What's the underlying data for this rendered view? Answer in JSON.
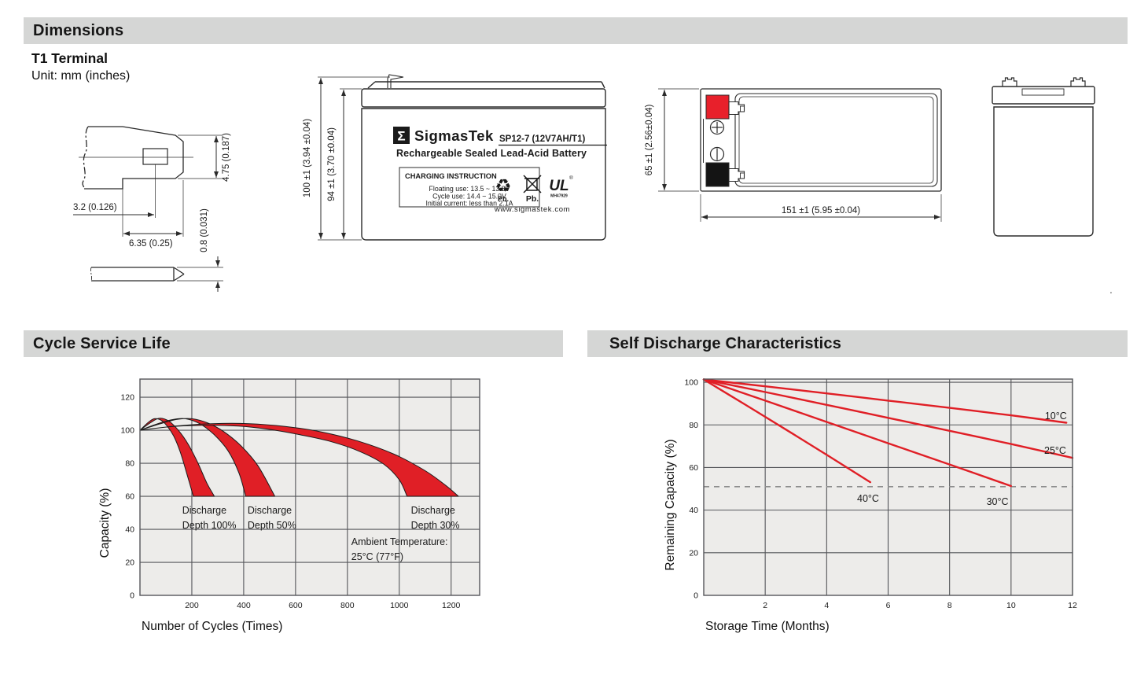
{
  "header": {
    "dimensions_title": "Dimensions"
  },
  "terminal_drawing": {
    "title": "T1 Terminal",
    "unit": "Unit: mm (inches)",
    "dim_blade_width": "4.75 (0.187)",
    "dim_offset": "3.2 (0.126)",
    "dim_blade_length": "6.35 (0.25)",
    "dim_thickness": "0.8 (0.031)"
  },
  "front_view": {
    "dim_total_height": "100 ±1 (3.94 ±0.04)",
    "dim_case_height": "94 ±1 (3.70 ±0.04)",
    "sigma_glyph": "Σ",
    "brand": "SigmasTek",
    "model": "SP12-7 (12V7AH/T1)",
    "subtitle": "Rechargeable Sealed Lead-Acid Battery",
    "charging_title": "CHARGING INSTRUCTION",
    "charging_line1": "Floating use: 13.5 ~ 13.8V",
    "charging_line2": "Cycle use: 14.4 ~ 15.0V",
    "charging_line3": "Initial current: less than 2.1A",
    "recycle_glyph": "♻",
    "pb_recycle": "Pb.",
    "pb_bin": "Pb.",
    "ul_text": "UL",
    "ul_reg": "®",
    "ul_code": "MH47929",
    "website": "www.sigmastek.com"
  },
  "top_view": {
    "dim_height_65": "65 ±1 (2.56±0.04)",
    "dim_length_151": "151 ±1 (5.95 ±0.04)"
  },
  "section_titles": {
    "cycle": "Cycle Service Life",
    "self_discharge": "Self Discharge Characteristics"
  },
  "stray_mark": ".",
  "colors": {
    "accent_red": "#e01f26",
    "terminal_red": "#e8202b",
    "plot_bg": "#edecea",
    "grid": "#55565a",
    "header_bg": "#d5d6d5",
    "dashed": "#8d8d8d"
  },
  "chart_data": [
    {
      "type": "area",
      "title": "Cycle Service Life",
      "xlabel": "Number of Cycles (Times)",
      "ylabel": "Capacity (%)",
      "xlim": [
        0,
        1310
      ],
      "ylim": [
        0,
        131
      ],
      "xticks": [
        200,
        400,
        600,
        800,
        1000,
        1200
      ],
      "yticks": [
        0,
        20,
        40,
        60,
        80,
        100,
        120
      ],
      "grid": true,
      "legend_position": "none",
      "bands": [
        {
          "name": "Discharge Depth 100%",
          "edge_left": [
            [
              0,
              100
            ],
            [
              30,
              104.5
            ],
            [
              55,
              107
            ],
            [
              80,
              106.2
            ],
            [
              105,
              102.5
            ],
            [
              130,
              96.5
            ],
            [
              155,
              87
            ],
            [
              180,
              74
            ],
            [
              206,
              60
            ]
          ],
          "edge_right": [
            [
              0,
              100
            ],
            [
              40,
              104.5
            ],
            [
              75,
              107.3
            ],
            [
              112,
              105.5
            ],
            [
              148,
              100
            ],
            [
              186,
              91.5
            ],
            [
              224,
              80
            ],
            [
              258,
              68
            ],
            [
              287,
              60
            ]
          ]
        },
        {
          "name": "Discharge Depth 50%",
          "edge_left": [
            [
              0,
              100
            ],
            [
              60,
              103.5
            ],
            [
              120,
              106.3
            ],
            [
              175,
              107
            ],
            [
              230,
              104
            ],
            [
              285,
              97.5
            ],
            [
              340,
              87.5
            ],
            [
              382,
              74
            ],
            [
              408,
              60
            ]
          ],
          "edge_right": [
            [
              0,
              100
            ],
            [
              70,
              103.5
            ],
            [
              140,
              106.5
            ],
            [
              200,
              107
            ],
            [
              260,
              104.5
            ],
            [
              320,
              99.5
            ],
            [
              390,
              90.5
            ],
            [
              455,
              78.5
            ],
            [
              520,
              60
            ]
          ]
        },
        {
          "name": "Discharge Depth 30%",
          "edge_left": [
            [
              0,
              100
            ],
            [
              120,
              102.2
            ],
            [
              250,
              103
            ],
            [
              380,
              102.5
            ],
            [
              500,
              100.5
            ],
            [
              620,
              97.2
            ],
            [
              740,
              93
            ],
            [
              850,
              87
            ],
            [
              940,
              79.5
            ],
            [
              1000,
              70
            ],
            [
              1030,
              60
            ]
          ],
          "edge_right": [
            [
              0,
              100
            ],
            [
              140,
              102.6
            ],
            [
              280,
              104
            ],
            [
              420,
              104
            ],
            [
              560,
              102.3
            ],
            [
              700,
              99
            ],
            [
              840,
              93.5
            ],
            [
              980,
              85.5
            ],
            [
              1100,
              75.5
            ],
            [
              1180,
              66.5
            ],
            [
              1228,
              60
            ]
          ]
        }
      ],
      "annotations": [
        {
          "lines": [
            "Discharge",
            "Depth 100%"
          ],
          "x": 163,
          "y": 49.5
        },
        {
          "lines": [
            "Discharge",
            "Depth 50%"
          ],
          "x": 415,
          "y": 49.5
        },
        {
          "lines": [
            "Discharge",
            "Depth 30%"
          ],
          "x": 1045,
          "y": 49.5
        },
        {
          "lines": [
            "Ambient Temperature:",
            "25°C (77°F)"
          ],
          "x": 815,
          "y": 30.5
        }
      ]
    },
    {
      "type": "line",
      "title": "Self Discharge Characteristics",
      "xlabel": "Storage Time (Months)",
      "ylabel": "Remaining Capacity (%)",
      "xlim": [
        0,
        12
      ],
      "ylim": [
        0,
        101.5
      ],
      "xticks": [
        2,
        4,
        6,
        8,
        10,
        12
      ],
      "yticks": [
        0,
        20,
        40,
        60,
        80,
        100
      ],
      "grid": true,
      "reference_line_y": 51,
      "series": [
        {
          "name": "10°C",
          "points": [
            [
              0,
              101.3
            ],
            [
              2,
              98.1
            ],
            [
              4,
              94.8
            ],
            [
              6,
              91.4
            ],
            [
              8,
              88
            ],
            [
              10,
              84.5
            ],
            [
              11.8,
              81
            ]
          ],
          "label_pos": [
            11.1,
            82.7
          ]
        },
        {
          "name": "25°C",
          "points": [
            [
              0,
              101.3
            ],
            [
              2,
              95.4
            ],
            [
              4,
              89.4
            ],
            [
              6,
              83.3
            ],
            [
              8,
              77.2
            ],
            [
              10,
              71
            ],
            [
              12,
              64.5
            ]
          ],
          "label_pos": [
            11.08,
            66.4
          ]
        },
        {
          "name": "30°C",
          "points": [
            [
              0,
              101.3
            ],
            [
              2,
              91.4
            ],
            [
              4,
              81.4
            ],
            [
              6,
              71.4
            ],
            [
              8,
              61.4
            ],
            [
              10,
              51.3
            ]
          ],
          "label_pos": [
            9.2,
            42.4
          ]
        },
        {
          "name": "40°C",
          "points": [
            [
              0,
              101.3
            ],
            [
              1.35,
              89.5
            ],
            [
              2.7,
              77.6
            ],
            [
              4.05,
              65.5
            ],
            [
              5.42,
              53.1
            ]
          ],
          "label_pos": [
            4.99,
            43.9
          ]
        }
      ]
    }
  ]
}
